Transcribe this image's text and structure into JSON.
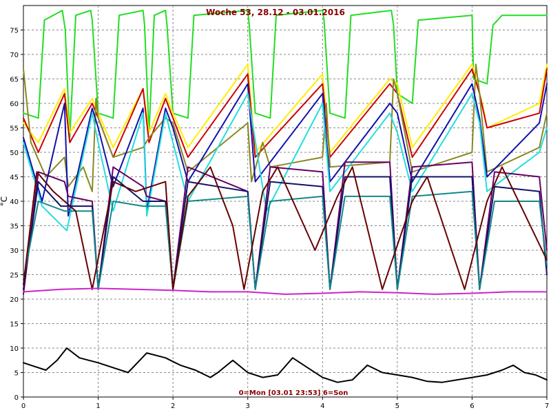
{
  "chart_data": {
    "type": "line",
    "title": "Woche 53, 28.12 - 03.01.2016",
    "footer": "0=Mon [03.01 23:53] 6=Son",
    "ylabel": "°C",
    "xlim": [
      0,
      7
    ],
    "ylim": [
      0,
      80
    ],
    "x_ticks": [
      0,
      1,
      2,
      3,
      4,
      5,
      6,
      7
    ],
    "y_ticks": [
      0,
      5,
      10,
      15,
      20,
      25,
      30,
      35,
      40,
      45,
      50,
      55,
      60,
      65,
      70,
      75
    ],
    "grid": true,
    "series": [
      {
        "color": "#22dd22",
        "points": [
          [
            0.0,
            58
          ],
          [
            0.2,
            57
          ],
          [
            0.28,
            77
          ],
          [
            0.52,
            79
          ],
          [
            0.56,
            75
          ],
          [
            0.62,
            53
          ],
          [
            0.7,
            78
          ],
          [
            0.9,
            79
          ],
          [
            0.92,
            77
          ],
          [
            1.0,
            58
          ],
          [
            1.2,
            57
          ],
          [
            1.28,
            78
          ],
          [
            1.6,
            79
          ],
          [
            1.62,
            76
          ],
          [
            1.68,
            54
          ],
          [
            1.75,
            78
          ],
          [
            1.9,
            79
          ],
          [
            1.92,
            76
          ],
          [
            2.0,
            58
          ],
          [
            2.2,
            57
          ],
          [
            2.28,
            78
          ],
          [
            3.0,
            79
          ],
          [
            3.02,
            76
          ],
          [
            3.1,
            58
          ],
          [
            3.3,
            57
          ],
          [
            3.38,
            78
          ],
          [
            4.0,
            79
          ],
          [
            4.02,
            77
          ],
          [
            4.1,
            58
          ],
          [
            4.3,
            57
          ],
          [
            4.38,
            78
          ],
          [
            4.92,
            79
          ],
          [
            4.95,
            76
          ],
          [
            5.0,
            62
          ],
          [
            5.2,
            60
          ],
          [
            5.28,
            77
          ],
          [
            6.0,
            78
          ],
          [
            6.02,
            65
          ],
          [
            6.2,
            64
          ],
          [
            6.28,
            76
          ],
          [
            6.4,
            78
          ],
          [
            7.0,
            78
          ]
        ]
      },
      {
        "color": "#ffee00",
        "points": [
          [
            0.0,
            56
          ],
          [
            0.2,
            52
          ],
          [
            0.55,
            63
          ],
          [
            0.62,
            54
          ],
          [
            0.92,
            61
          ],
          [
            1.0,
            58
          ],
          [
            1.2,
            51
          ],
          [
            1.6,
            63
          ],
          [
            1.68,
            54
          ],
          [
            1.9,
            62
          ],
          [
            2.0,
            58
          ],
          [
            2.2,
            51
          ],
          [
            3.0,
            68
          ],
          [
            3.1,
            50
          ],
          [
            4.0,
            66
          ],
          [
            4.1,
            50
          ],
          [
            4.9,
            65
          ],
          [
            5.0,
            64
          ],
          [
            5.2,
            51
          ],
          [
            6.0,
            68
          ],
          [
            6.15,
            59
          ],
          [
            6.2,
            55
          ],
          [
            6.9,
            60
          ],
          [
            7.0,
            68
          ]
        ]
      },
      {
        "color": "#cc0000",
        "points": [
          [
            0.0,
            57
          ],
          [
            0.2,
            50
          ],
          [
            0.55,
            62
          ],
          [
            0.62,
            52
          ],
          [
            0.92,
            60
          ],
          [
            1.0,
            57
          ],
          [
            1.2,
            49
          ],
          [
            1.6,
            63
          ],
          [
            1.68,
            52
          ],
          [
            1.9,
            61
          ],
          [
            2.0,
            57
          ],
          [
            2.2,
            49
          ],
          [
            3.0,
            66
          ],
          [
            3.1,
            49
          ],
          [
            4.0,
            64
          ],
          [
            4.1,
            49
          ],
          [
            4.9,
            64
          ],
          [
            5.0,
            62
          ],
          [
            5.2,
            49
          ],
          [
            6.0,
            67
          ],
          [
            6.1,
            62
          ],
          [
            6.2,
            55
          ],
          [
            6.9,
            58
          ],
          [
            7.0,
            67
          ]
        ]
      },
      {
        "color": "#888822",
        "points": [
          [
            0.0,
            67
          ],
          [
            0.1,
            52
          ],
          [
            0.3,
            45
          ],
          [
            0.55,
            49
          ],
          [
            0.6,
            43
          ],
          [
            0.8,
            47
          ],
          [
            0.92,
            42
          ],
          [
            0.97,
            61
          ],
          [
            1.0,
            57
          ],
          [
            1.2,
            49
          ],
          [
            1.6,
            51
          ],
          [
            1.68,
            53
          ],
          [
            1.9,
            57
          ],
          [
            2.0,
            56
          ],
          [
            2.2,
            46
          ],
          [
            3.0,
            56
          ],
          [
            3.05,
            44
          ],
          [
            3.2,
            52
          ],
          [
            3.3,
            47
          ],
          [
            4.0,
            49
          ],
          [
            4.05,
            60
          ],
          [
            4.1,
            47
          ],
          [
            4.9,
            48
          ],
          [
            4.95,
            65
          ],
          [
            5.0,
            62
          ],
          [
            5.2,
            46
          ],
          [
            6.0,
            50
          ],
          [
            6.05,
            68
          ],
          [
            6.1,
            62
          ],
          [
            6.2,
            46
          ],
          [
            6.9,
            51
          ],
          [
            7.0,
            58
          ]
        ]
      },
      {
        "color": "#1111aa",
        "points": [
          [
            0.0,
            53
          ],
          [
            0.25,
            40
          ],
          [
            0.55,
            60
          ],
          [
            0.6,
            37
          ],
          [
            0.92,
            59
          ],
          [
            1.0,
            55
          ],
          [
            1.2,
            43
          ],
          [
            1.6,
            59
          ],
          [
            1.65,
            38
          ],
          [
            1.9,
            59
          ],
          [
            2.0,
            55
          ],
          [
            2.2,
            44
          ],
          [
            3.0,
            64
          ],
          [
            3.1,
            44
          ],
          [
            4.0,
            62
          ],
          [
            4.1,
            44
          ],
          [
            4.9,
            60
          ],
          [
            5.0,
            58
          ],
          [
            5.2,
            44
          ],
          [
            6.0,
            64
          ],
          [
            6.1,
            57
          ],
          [
            6.2,
            45
          ],
          [
            6.9,
            56
          ],
          [
            7.0,
            64
          ]
        ]
      },
      {
        "color": "#22dddd",
        "points": [
          [
            0.0,
            52
          ],
          [
            0.25,
            39
          ],
          [
            0.58,
            34
          ],
          [
            0.92,
            58
          ],
          [
            1.0,
            52
          ],
          [
            1.2,
            38
          ],
          [
            1.6,
            58
          ],
          [
            1.65,
            37
          ],
          [
            1.9,
            58
          ],
          [
            2.0,
            52
          ],
          [
            2.2,
            40
          ],
          [
            3.0,
            62
          ],
          [
            3.25,
            38
          ],
          [
            4.0,
            60
          ],
          [
            4.1,
            42
          ],
          [
            4.9,
            58
          ],
          [
            5.0,
            54
          ],
          [
            5.2,
            42
          ],
          [
            6.0,
            62
          ],
          [
            6.1,
            56
          ],
          [
            6.2,
            42
          ],
          [
            6.9,
            50
          ],
          [
            7.0,
            55
          ]
        ]
      },
      {
        "color": "#660066",
        "points": [
          [
            0.0,
            21
          ],
          [
            0.2,
            46
          ],
          [
            0.55,
            44
          ],
          [
            0.6,
            41
          ],
          [
            0.92,
            40
          ],
          [
            1.0,
            22
          ],
          [
            1.2,
            47
          ],
          [
            1.6,
            43
          ],
          [
            1.65,
            41
          ],
          [
            1.9,
            40
          ],
          [
            2.0,
            22
          ],
          [
            2.2,
            47
          ],
          [
            3.0,
            42
          ],
          [
            3.1,
            22
          ],
          [
            3.3,
            47
          ],
          [
            4.0,
            46
          ],
          [
            4.1,
            22
          ],
          [
            4.3,
            48
          ],
          [
            4.9,
            48
          ],
          [
            5.0,
            22
          ],
          [
            5.2,
            47
          ],
          [
            6.0,
            48
          ],
          [
            6.1,
            22
          ],
          [
            6.3,
            46
          ],
          [
            6.9,
            45
          ],
          [
            7.0,
            30
          ]
        ]
      },
      {
        "color": "#111166",
        "points": [
          [
            0.0,
            22
          ],
          [
            0.2,
            44
          ],
          [
            0.5,
            39
          ],
          [
            0.92,
            39
          ],
          [
            1.0,
            22
          ],
          [
            1.2,
            45
          ],
          [
            1.6,
            40
          ],
          [
            1.9,
            40
          ],
          [
            2.0,
            22
          ],
          [
            2.2,
            44
          ],
          [
            3.0,
            42
          ],
          [
            3.1,
            22
          ],
          [
            3.3,
            44
          ],
          [
            4.0,
            43
          ],
          [
            4.1,
            22
          ],
          [
            4.3,
            45
          ],
          [
            4.9,
            45
          ],
          [
            5.0,
            22
          ],
          [
            5.2,
            45
          ],
          [
            6.0,
            45
          ],
          [
            6.1,
            22
          ],
          [
            6.3,
            43
          ],
          [
            6.9,
            42
          ],
          [
            7.0,
            25
          ]
        ]
      },
      {
        "color": "#118888",
        "points": [
          [
            0.0,
            24
          ],
          [
            0.2,
            40
          ],
          [
            0.55,
            38
          ],
          [
            0.92,
            38
          ],
          [
            1.0,
            22
          ],
          [
            1.2,
            40
          ],
          [
            1.6,
            39
          ],
          [
            1.9,
            39
          ],
          [
            2.0,
            22
          ],
          [
            2.2,
            40
          ],
          [
            3.0,
            41
          ],
          [
            3.1,
            22
          ],
          [
            3.3,
            40
          ],
          [
            4.0,
            41
          ],
          [
            4.1,
            22
          ],
          [
            4.3,
            41
          ],
          [
            4.9,
            41
          ],
          [
            5.0,
            22
          ],
          [
            5.2,
            41
          ],
          [
            6.0,
            42
          ],
          [
            6.1,
            22
          ],
          [
            6.3,
            40
          ],
          [
            6.9,
            40
          ],
          [
            7.0,
            27
          ]
        ]
      },
      {
        "color": "#660000",
        "points": [
          [
            0.0,
            23
          ],
          [
            0.18,
            46
          ],
          [
            0.4,
            42
          ],
          [
            0.7,
            38
          ],
          [
            0.92,
            22
          ],
          [
            1.2,
            44
          ],
          [
            1.5,
            42
          ],
          [
            1.9,
            44
          ],
          [
            2.0,
            22
          ],
          [
            2.2,
            41
          ],
          [
            2.5,
            47
          ],
          [
            2.8,
            35
          ],
          [
            2.95,
            22
          ],
          [
            3.2,
            42
          ],
          [
            3.4,
            47
          ],
          [
            3.9,
            30
          ],
          [
            4.2,
            41
          ],
          [
            4.4,
            47
          ],
          [
            4.8,
            22
          ],
          [
            5.2,
            40
          ],
          [
            5.4,
            45
          ],
          [
            5.9,
            22
          ],
          [
            6.2,
            40
          ],
          [
            6.4,
            47
          ],
          [
            7.0,
            28
          ]
        ]
      },
      {
        "color": "#cc22cc",
        "points": [
          [
            0.0,
            21.5
          ],
          [
            0.5,
            22
          ],
          [
            1.0,
            22.2
          ],
          [
            1.5,
            22
          ],
          [
            2.0,
            21.8
          ],
          [
            2.5,
            21.5
          ],
          [
            3.0,
            21.5
          ],
          [
            3.5,
            21
          ],
          [
            4.0,
            21.2
          ],
          [
            4.5,
            21.5
          ],
          [
            5.0,
            21.3
          ],
          [
            5.5,
            21
          ],
          [
            6.0,
            21.2
          ],
          [
            6.5,
            21.5
          ],
          [
            7.0,
            21.5
          ]
        ]
      },
      {
        "color": "#000000",
        "points": [
          [
            0.0,
            7
          ],
          [
            0.1,
            6.5
          ],
          [
            0.3,
            5.5
          ],
          [
            0.45,
            7.5
          ],
          [
            0.58,
            10
          ],
          [
            0.75,
            8
          ],
          [
            1.0,
            7
          ],
          [
            1.2,
            6
          ],
          [
            1.4,
            5
          ],
          [
            1.65,
            9
          ],
          [
            1.9,
            8
          ],
          [
            2.1,
            6.5
          ],
          [
            2.3,
            5.5
          ],
          [
            2.5,
            4
          ],
          [
            2.6,
            5
          ],
          [
            2.8,
            7.5
          ],
          [
            3.0,
            5
          ],
          [
            3.2,
            4
          ],
          [
            3.4,
            4.5
          ],
          [
            3.6,
            8
          ],
          [
            3.8,
            6
          ],
          [
            4.0,
            4
          ],
          [
            4.2,
            3
          ],
          [
            4.4,
            3.5
          ],
          [
            4.6,
            6.5
          ],
          [
            4.8,
            5
          ],
          [
            5.0,
            4.5
          ],
          [
            5.2,
            4
          ],
          [
            5.4,
            3.2
          ],
          [
            5.6,
            3
          ],
          [
            5.8,
            3.5
          ],
          [
            6.0,
            4
          ],
          [
            6.2,
            4.5
          ],
          [
            6.4,
            5.5
          ],
          [
            6.55,
            6.5
          ],
          [
            6.7,
            5
          ],
          [
            6.85,
            4.5
          ],
          [
            7.0,
            3.5
          ]
        ]
      }
    ]
  }
}
